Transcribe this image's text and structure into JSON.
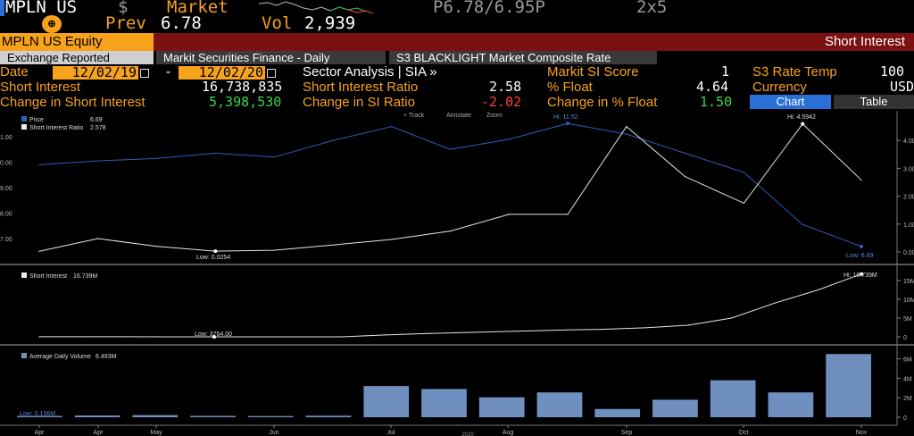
{
  "ticker": {
    "symbol": "MPLN US",
    "currency_symbol": "$",
    "market_label": "Market",
    "prev_label": "Prev",
    "prev_value": "6.78",
    "vol_label": "Vol",
    "vol_value": "2,939",
    "quote": "P6.78/6.95P",
    "size": "2x5"
  },
  "title": {
    "security": "MPLN US Equity",
    "function": "Short Interest"
  },
  "tabs": [
    {
      "label": "Exchange Reported",
      "active": true
    },
    {
      "label": "Markit Securities Finance - Daily",
      "active": false
    },
    {
      "label": "S3 BLACKLIGHT Market Composite Rate",
      "active": false
    }
  ],
  "fields": {
    "date_label": "Date",
    "date_from": "12/02/19",
    "date_dash": "-",
    "date_to": "12/02/20",
    "sector_label": "Sector Analysis | SIA »",
    "markit_label": "Markit SI Score",
    "markit_value": "1",
    "s3_label": "S3 Rate Temp",
    "s3_value": "100",
    "si_label": "Short Interest",
    "si_value": "16,738,835",
    "sir_label": "Short Interest Ratio",
    "sir_value": "2.58",
    "float_label": "% Float",
    "float_value": "4.64",
    "currency_label": "Currency",
    "currency_value": "USD",
    "chg_si_label": "Change in Short Interest",
    "chg_si_value": "5,398,530",
    "chg_sir_label": "Change in SI Ratio",
    "chg_sir_value": "-2.02",
    "chg_float_label": "Change in % Float",
    "chg_float_value": "1.50",
    "chart_button": "Chart",
    "table_button": "Table"
  },
  "toolbar": {
    "track": "+ Track",
    "annotate": "Annotate",
    "zoom": "Zoom"
  },
  "colors": {
    "orange": "#f7a21b",
    "price_line": "#2e5fbf",
    "si_line": "#e6e6e6",
    "bar": "#6f8fbf",
    "green": "#3fd34a",
    "red": "#ff3f3f"
  },
  "chart_data": [
    {
      "type": "line",
      "legend": [
        {
          "name": "Price",
          "value": "6.69"
        },
        {
          "name": "Short Interest Ratio",
          "value": "2.578"
        }
      ],
      "series": [
        {
          "name": "Price",
          "axis": "left",
          "values": [
            9.9,
            10.05,
            10.15,
            10.35,
            10.2,
            10.85,
            11.4,
            10.5,
            10.9,
            11.52,
            11.1,
            10.35,
            9.6,
            7.55,
            6.69
          ]
        },
        {
          "name": "Short Interest Ratio",
          "axis": "right",
          "values": [
            0.0254,
            0.48,
            0.2,
            0.03,
            0.06,
            0.25,
            0.45,
            0.75,
            1.35,
            1.35,
            4.5,
            2.7,
            1.75,
            4.5942,
            2.578
          ]
        }
      ],
      "left_ticks": [
        "1.00",
        "0.00",
        "9.00",
        "8.00",
        "7.00"
      ],
      "right_ticks": [
        "4.00",
        "3.00",
        "2.00",
        "1.00",
        "0.00"
      ],
      "annotations": [
        {
          "text": "Low: 0.0254"
        },
        {
          "text": "Hi: 11.52"
        },
        {
          "text": "Hi: 4.5942"
        },
        {
          "text": "Low: 6.69"
        }
      ]
    },
    {
      "type": "line",
      "legend": [
        {
          "name": "Short Interest",
          "value": "16.739M"
        }
      ],
      "series": [
        {
          "name": "Short Interest",
          "values": [
            0.02,
            0.02,
            0.02,
            0.01,
            0.004,
            0.004,
            0.0038,
            0.004,
            0.5,
            0.9,
            1.2,
            1.5,
            1.8,
            2.0,
            2.4,
            3.1,
            5.0,
            9.0,
            12.5,
            16.739
          ]
        }
      ],
      "right_ticks": [
        "15M",
        "10M",
        "5M",
        "0"
      ],
      "annotations": [
        {
          "text": "Low: 3764.00"
        },
        {
          "text": "Hi: 16.739M"
        }
      ]
    },
    {
      "type": "bar",
      "legend": [
        {
          "name": "Average Daily Volume",
          "value": "6.493M"
        }
      ],
      "values": [
        0.136,
        0.18,
        0.22,
        0.14,
        0.12,
        0.16,
        3.2,
        2.9,
        2.05,
        2.55,
        0.85,
        1.8,
        3.8,
        2.55,
        6.493
      ],
      "right_ticks": [
        "6M",
        "4M",
        "2M",
        "0"
      ],
      "annotations": [
        {
          "text": "Low: 0.136M"
        }
      ],
      "x_labels": [
        "Apr",
        "Apr",
        "May",
        "Jun",
        "Jul",
        "Aug",
        "Sep",
        "Oct",
        "Nov"
      ],
      "year_label": "2020"
    }
  ]
}
